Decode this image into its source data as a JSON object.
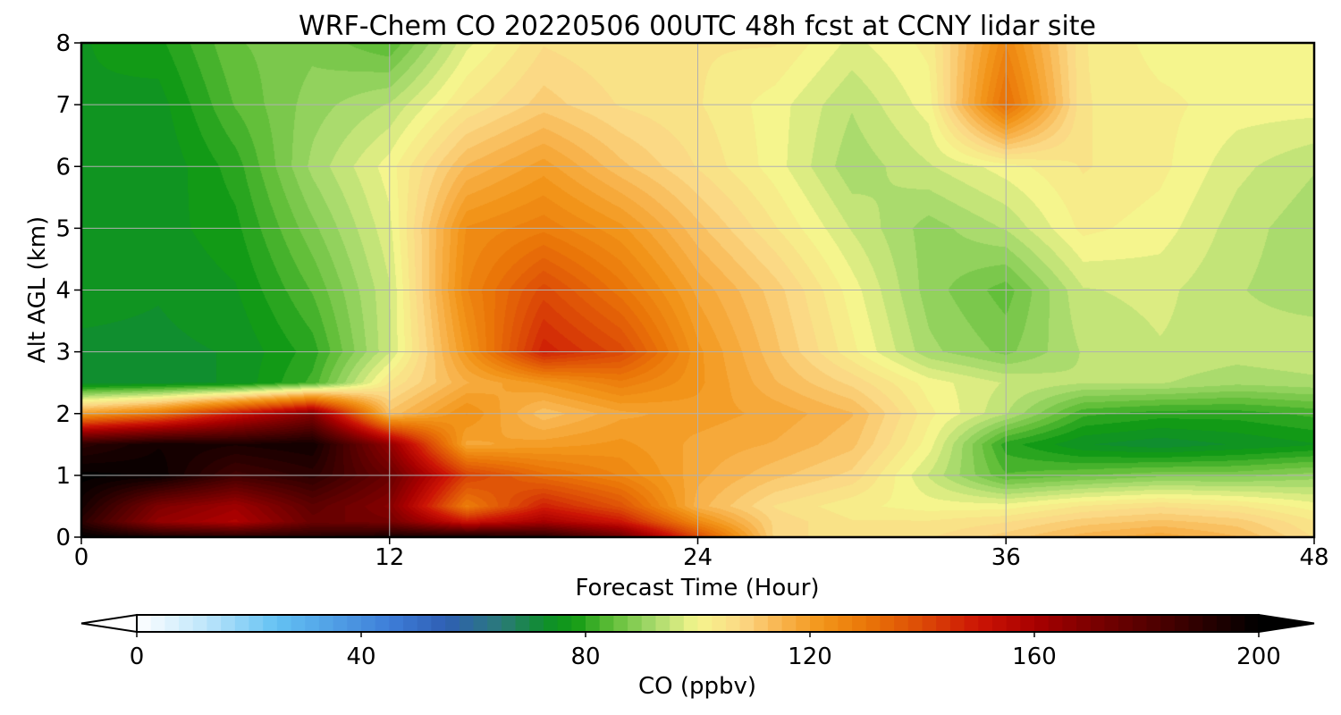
{
  "chart_data": {
    "type": "heatmap",
    "title": "WRF-Chem CO  20220506 00UTC 48h fcst at CCNY lidar site",
    "xlabel": "Forecast Time (Hour)",
    "ylabel": "Alt AGL (km)",
    "xlim": [
      0,
      48
    ],
    "ylim": [
      0,
      8
    ],
    "xticks": [
      0,
      12,
      24,
      36,
      48
    ],
    "yticks": [
      0,
      1,
      2,
      3,
      4,
      5,
      6,
      7,
      8
    ],
    "grid": true,
    "colorbar": {
      "label": "CO  (ppbv)",
      "ticks": [
        0,
        40,
        80,
        120,
        160,
        200
      ],
      "range": [
        0,
        200
      ],
      "extend": "both",
      "orientation": "horizontal",
      "stops": [
        {
          "v": 0,
          "c": "#ffffff"
        },
        {
          "v": 12,
          "c": "#bfe6fb"
        },
        {
          "v": 25,
          "c": "#63c1f3"
        },
        {
          "v": 45,
          "c": "#3e7ed8"
        },
        {
          "v": 55,
          "c": "#2f5fb4"
        },
        {
          "v": 65,
          "c": "#2a7a78"
        },
        {
          "v": 73,
          "c": "#0e8f2a"
        },
        {
          "v": 78,
          "c": "#129b14"
        },
        {
          "v": 85,
          "c": "#63bf3a"
        },
        {
          "v": 92,
          "c": "#a5d96b"
        },
        {
          "v": 100,
          "c": "#f5f58d"
        },
        {
          "v": 108,
          "c": "#fbd784"
        },
        {
          "v": 115,
          "c": "#f8b34c"
        },
        {
          "v": 122,
          "c": "#f2961a"
        },
        {
          "v": 130,
          "c": "#ea7608"
        },
        {
          "v": 140,
          "c": "#dc4a06"
        },
        {
          "v": 150,
          "c": "#cc1405"
        },
        {
          "v": 160,
          "c": "#a80000"
        },
        {
          "v": 170,
          "c": "#7d0000"
        },
        {
          "v": 182,
          "c": "#4d0000"
        },
        {
          "v": 193,
          "c": "#1e0000"
        },
        {
          "v": 200,
          "c": "#000000"
        }
      ]
    },
    "field": {
      "x": [
        0,
        3,
        6,
        9,
        12,
        15,
        18,
        21,
        24,
        27,
        30,
        33,
        36,
        39,
        42,
        45,
        48
      ],
      "y": [
        0,
        0.25,
        0.5,
        1,
        1.5,
        2,
        2.5,
        3,
        4,
        5,
        6,
        7,
        8
      ],
      "values": [
        [
          200,
          195,
          192,
          192,
          195,
          196,
          192,
          175,
          140,
          108,
          104,
          106,
          110,
          115,
          118,
          114,
          106
        ],
        [
          190,
          165,
          158,
          175,
          172,
          150,
          160,
          150,
          125,
          108,
          104,
          104,
          106,
          110,
          112,
          110,
          104
        ],
        [
          195,
          170,
          162,
          178,
          168,
          128,
          148,
          138,
          115,
          106,
          102,
          100,
          100,
          104,
          106,
          104,
          100
        ],
        [
          200,
          198,
          185,
          190,
          175,
          142,
          132,
          126,
          117,
          112,
          108,
          96,
          84,
          86,
          88,
          88,
          90
        ],
        [
          190,
          196,
          194,
          196,
          165,
          118,
          120,
          122,
          118,
          116,
          112,
          100,
          80,
          74,
          72,
          74,
          76
        ],
        [
          120,
          130,
          150,
          168,
          112,
          124,
          112,
          118,
          120,
          118,
          114,
          102,
          94,
          82,
          80,
          80,
          82
        ],
        [
          72,
          73,
          74,
          82,
          104,
          116,
          122,
          128,
          122,
          114,
          108,
          100,
          96,
          94,
          94,
          92,
          93
        ],
        [
          73,
          73,
          74,
          80,
          96,
          122,
          148,
          140,
          122,
          112,
          102,
          92,
          88,
          94,
          96,
          95,
          96
        ],
        [
          75,
          74,
          76,
          84,
          96,
          126,
          140,
          130,
          118,
          110,
          100,
          90,
          85,
          96,
          97,
          94,
          92
        ],
        [
          74,
          75,
          78,
          88,
          98,
          124,
          128,
          122,
          112,
          104,
          96,
          90,
          94,
          102,
          100,
          95,
          92
        ],
        [
          76,
          74,
          80,
          92,
          100,
          114,
          120,
          112,
          106,
          100,
          92,
          96,
          100,
          104,
          102,
          97,
          94
        ],
        [
          76,
          75,
          84,
          90,
          94,
          104,
          110,
          106,
          104,
          100,
          94,
          100,
          132,
          104,
          102,
          100,
          100
        ],
        [
          76,
          78,
          86,
          88,
          84,
          98,
          106,
          104,
          104,
          104,
          98,
          102,
          126,
          104,
          100,
          100,
          100
        ]
      ]
    }
  }
}
